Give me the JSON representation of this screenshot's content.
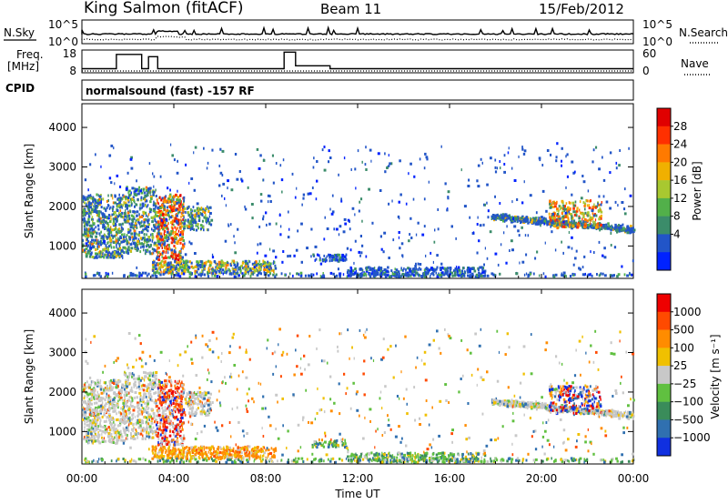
{
  "header": {
    "station": "King Salmon (fitACF)",
    "beam": "Beam 11",
    "date": "15/Feb/2012"
  },
  "noise_panel": {
    "left_label": "N.Sky",
    "right_label": "N.Search",
    "left_ticks": [
      "10^5",
      "10^0"
    ],
    "right_ticks": [
      "10^5",
      "10^0"
    ]
  },
  "freq_panel": {
    "left_label_line1": "Freq.",
    "left_label_line2": "[MHz]",
    "right_label": "Nave",
    "left_ticks": [
      "18",
      "8"
    ],
    "right_ticks": [
      "60",
      "0"
    ],
    "freq_steps": [
      [
        0,
        10.2
      ],
      [
        1.5,
        10.2
      ],
      [
        1.5,
        16.5
      ],
      [
        2.6,
        16.5
      ],
      [
        2.6,
        10.2
      ],
      [
        2.9,
        10.2
      ],
      [
        2.9,
        15.5
      ],
      [
        3.3,
        15.5
      ],
      [
        3.3,
        10.2
      ],
      [
        8.8,
        10.2
      ],
      [
        8.8,
        17.5
      ],
      [
        9.3,
        17.5
      ],
      [
        9.3,
        11.5
      ],
      [
        10.8,
        11.5
      ],
      [
        10.8,
        10.2
      ],
      [
        24,
        10.2
      ]
    ]
  },
  "cpid": {
    "label": "CPID",
    "program": "normalsound (fast) -157 RF"
  },
  "x_axis": {
    "title": "Time UT",
    "ticks": [
      "00:00",
      "04:00",
      "08:00",
      "12:00",
      "16:00",
      "20:00",
      "00:00"
    ],
    "range_hours": [
      0,
      24
    ]
  },
  "panels": [
    {
      "name": "power",
      "ylabel": "Slant Range [km]",
      "yticks": [
        "1000",
        "2000",
        "3000",
        "4000"
      ],
      "ylim": [
        180,
        4600
      ],
      "colorbar_label": "Power [dB]",
      "colorbar_ticks": [
        "28",
        "24",
        "20",
        "16",
        "12",
        "8",
        "4"
      ],
      "colors": [
        "#0022ff",
        "#2255c8",
        "#3b8c6a",
        "#52b04a",
        "#a8c830",
        "#f0b000",
        "#ff7a00",
        "#ff3000",
        "#e00000"
      ]
    },
    {
      "name": "velocity",
      "ylabel": "Slant Range [km]",
      "yticks": [
        "1000",
        "2000",
        "3000",
        "4000"
      ],
      "ylim": [
        180,
        4600
      ],
      "colorbar_label": "Velocity [m s⁻¹]",
      "colorbar_ticks": [
        "1000",
        "500",
        "100",
        "25",
        "−25",
        "−100",
        "−500",
        "−1000"
      ],
      "colors": [
        "#1030e0",
        "#3070b0",
        "#3a8c5a",
        "#60c040",
        "#c8c8c8",
        "#f0c000",
        "#ff8c00",
        "#ff4a00",
        "#ee0000"
      ]
    }
  ],
  "chart_data": [
    {
      "type": "heatmap",
      "title": "Power [dB]",
      "xlabel": "Time UT",
      "ylabel": "Slant Range [km]",
      "xlim": [
        0,
        24
      ],
      "ylim": [
        180,
        4600
      ],
      "colorbar": {
        "label": "Power [dB]",
        "ticks": [
          4,
          8,
          12,
          16,
          20,
          24,
          28
        ]
      },
      "scatter_regions": [
        {
          "x": [
            0.0,
            5.5
          ],
          "y": [
            600,
            2400
          ],
          "level": "moderate-to-strong"
        },
        {
          "x": [
            2.8,
            4.5
          ],
          "y": [
            700,
            2400
          ],
          "level": "strong (up to ~28 dB)"
        },
        {
          "x": [
            3.0,
            8.0
          ],
          "y": [
            300,
            600
          ],
          "level": "moderate"
        },
        {
          "x": [
            10.0,
            17.0
          ],
          "y": [
            200,
            800
          ],
          "level": "weak"
        },
        {
          "x": [
            17.0,
            24.0
          ],
          "y": [
            1200,
            2000
          ],
          "level": "moderate"
        },
        {
          "x": [
            20.5,
            22.5
          ],
          "y": [
            1500,
            2100
          ],
          "level": "strong (~24 dB)"
        }
      ]
    },
    {
      "type": "heatmap",
      "title": "Velocity [m s⁻¹]",
      "xlabel": "Time UT",
      "ylabel": "Slant Range [km]",
      "xlim": [
        0,
        24
      ],
      "ylim": [
        180,
        4600
      ],
      "colorbar": {
        "label": "Velocity [m s⁻¹]",
        "ticks": [
          1000,
          500,
          100,
          25,
          -25,
          -100,
          -500,
          -1000
        ]
      },
      "scatter_regions": [
        {
          "x": [
            0.0,
            3.0
          ],
          "y": [
            500,
            2200
          ],
          "level": "near zero (gray)"
        },
        {
          "x": [
            3.0,
            5.0
          ],
          "y": [
            600,
            2000
          ],
          "level": "strongly negative (red)"
        },
        {
          "x": [
            3.0,
            8.5
          ],
          "y": [
            300,
            700
          ],
          "level": "negative (orange)"
        },
        {
          "x": [
            12.0,
            18.0
          ],
          "y": [
            200,
            700
          ],
          "level": "mixed small"
        },
        {
          "x": [
            17.0,
            24.0
          ],
          "y": [
            1100,
            1800
          ],
          "level": "near zero (gray)"
        },
        {
          "x": [
            20.5,
            22.5
          ],
          "y": [
            1600,
            2200
          ],
          "level": "mixed positive/negative"
        }
      ]
    }
  ]
}
